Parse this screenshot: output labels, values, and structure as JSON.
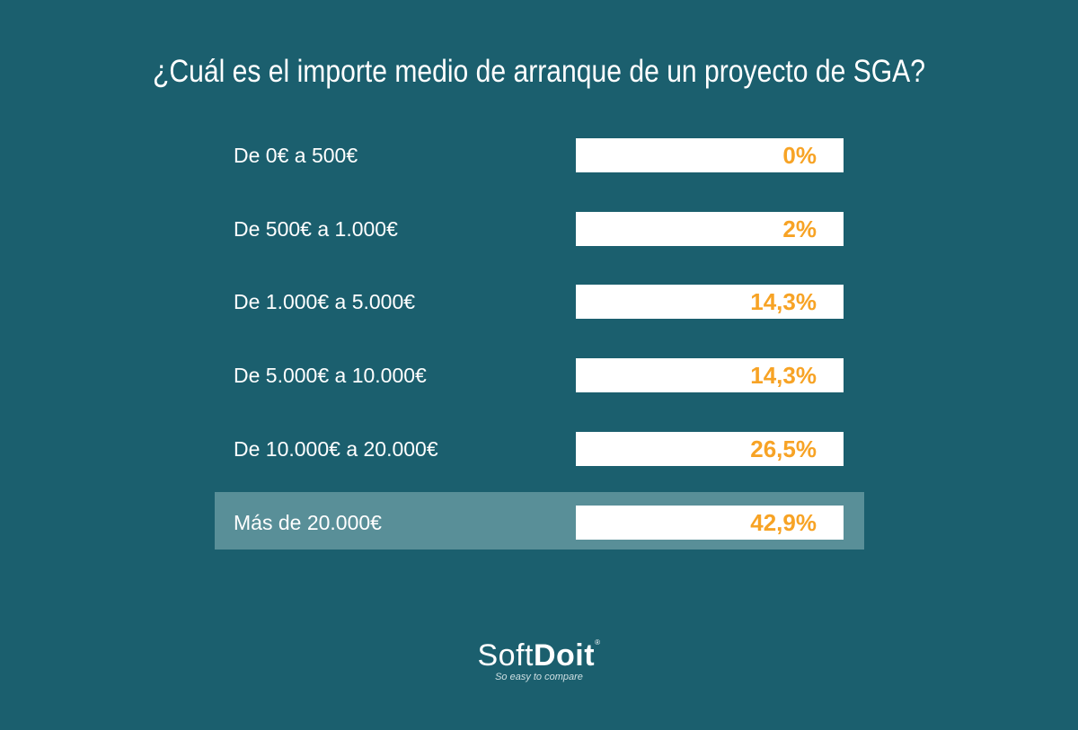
{
  "title": "¿Cuál es el importe medio de arranque de un proyecto de SGA?",
  "chart_data": {
    "type": "table",
    "title": "¿Cuál es el importe medio de arranque de un proyecto de SGA?",
    "categories": [
      "De 0€ a 500€",
      "De 500€ a 1.000€",
      "De 1.000€ a 5.000€",
      "De 5.000€ a 10.000€",
      "De 10.000€ a 20.000€",
      "Más de 20.000€"
    ],
    "values": [
      0,
      2,
      14.3,
      14.3,
      26.5,
      42.9
    ],
    "labels": [
      "0%",
      "2%",
      "14,3%",
      "14,3%",
      "26,5%",
      "42,9%"
    ],
    "highlighted": "Más de 20.000€"
  },
  "logo": {
    "soft": "Soft",
    "doit": "Doit",
    "reg": "®",
    "tagline": "So easy to compare"
  },
  "colors": {
    "background": "#1b5f6e",
    "highlight": "#598f98",
    "value": "#f7a325"
  }
}
